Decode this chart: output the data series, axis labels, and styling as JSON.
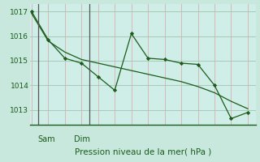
{
  "bg_color": "#c8e8de",
  "plot_bg_color": "#d0eee8",
  "grid_color_v": "#d8b8b8",
  "grid_color_h": "#a8c8b8",
  "line_color": "#1a5c1a",
  "separator_color": "#555555",
  "line1_x": [
    0,
    1,
    2,
    3,
    4,
    5,
    6,
    7,
    8,
    9,
    10,
    11,
    12,
    13
  ],
  "line1_y": [
    1017.0,
    1015.85,
    1015.1,
    1014.9,
    1014.35,
    1013.8,
    1016.1,
    1015.1,
    1015.05,
    1014.9,
    1014.85,
    1014.0,
    1012.65,
    1012.9
  ],
  "line2_x": [
    0,
    1,
    2,
    3,
    4,
    5,
    6,
    7,
    8,
    9,
    10,
    11,
    12,
    13
  ],
  "line2_y": [
    1016.92,
    1015.8,
    1015.35,
    1015.05,
    1014.9,
    1014.75,
    1014.6,
    1014.45,
    1014.3,
    1014.15,
    1013.95,
    1013.7,
    1013.35,
    1013.05
  ],
  "sam_x": 0.38,
  "dim_x": 3.5,
  "xlim": [
    -0.1,
    13.5
  ],
  "ylim": [
    1012.4,
    1017.3
  ],
  "yticks": [
    1013,
    1014,
    1015,
    1016,
    1017
  ],
  "n_vgrid": 14,
  "xlabel": "Pression niveau de la mer( hPa )",
  "axis_label_fontsize": 7,
  "tick_fontsize": 6.5,
  "xlabel_fontsize": 7.5
}
